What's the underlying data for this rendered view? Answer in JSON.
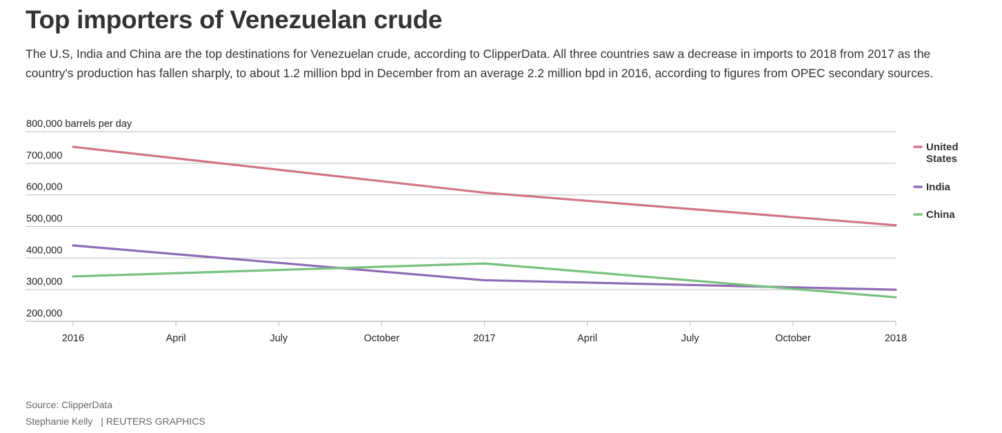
{
  "header": {
    "title": "Top importers of Venezuelan crude",
    "description": "The U.S, India and China are the top destinations for Venezuelan crude, according to ClipperData. All three countries saw a decrease in imports to 2018 from 2017 as the country's production has fallen sharply, to about 1.2 million bpd in December from an average 2.2 million bpd in 2016, according to figures from OPEC secondary sources."
  },
  "chart_data": {
    "type": "line",
    "title": "Top importers of Venezuelan crude",
    "xlabel": "",
    "ylabel": "barrels per day",
    "y_unit_label": "800,000 barrels per day",
    "ylim": [
      200000,
      800000
    ],
    "yticks": [
      200000,
      300000,
      400000,
      500000,
      600000,
      700000,
      800000
    ],
    "ytick_labels": [
      "200,000",
      "300,000",
      "400,000",
      "500,000",
      "600,000",
      "700,000",
      "800,000 barrels per day"
    ],
    "xlim": [
      0,
      24
    ],
    "xticks": [
      0,
      3,
      6,
      9,
      12,
      15,
      18,
      21,
      24
    ],
    "xtick_labels": [
      "2016",
      "April",
      "July",
      "October",
      "2017",
      "April",
      "July",
      "October",
      "2018"
    ],
    "grid": true,
    "legend_position": "right",
    "x": [
      0,
      12,
      24
    ],
    "x_labels": [
      "2016",
      "2017",
      "2018"
    ],
    "series": [
      {
        "name": "United States",
        "legend_lines": [
          "United",
          "States"
        ],
        "color": "#d07585",
        "values": [
          752000,
          607000,
          504000
        ]
      },
      {
        "name": "India",
        "legend_lines": [
          "India"
        ],
        "color": "#8e6bb5",
        "values": [
          440000,
          330000,
          300000
        ]
      },
      {
        "name": "China",
        "legend_lines": [
          "China"
        ],
        "color": "#78c17e",
        "values": [
          342000,
          383000,
          276000
        ]
      }
    ]
  },
  "footer": {
    "source": "Source: ClipperData",
    "author": "Stephanie Kelly",
    "brand": "| REUTERS GRAPHICS"
  }
}
